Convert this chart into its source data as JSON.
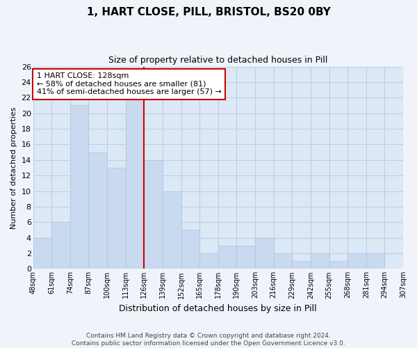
{
  "title": "1, HART CLOSE, PILL, BRISTOL, BS20 0BY",
  "subtitle": "Size of property relative to detached houses in Pill",
  "xlabel": "Distribution of detached houses by size in Pill",
  "ylabel": "Number of detached properties",
  "bar_labels": [
    "48sqm",
    "61sqm",
    "74sqm",
    "87sqm",
    "100sqm",
    "113sqm",
    "126sqm",
    "139sqm",
    "152sqm",
    "165sqm",
    "178sqm",
    "190sqm",
    "203sqm",
    "216sqm",
    "229sqm",
    "242sqm",
    "255sqm",
    "268sqm",
    "281sqm",
    "294sqm",
    "307sqm"
  ],
  "bar_values": [
    4,
    6,
    21,
    15,
    13,
    22,
    14,
    10,
    5,
    2,
    3,
    3,
    4,
    2,
    1,
    2,
    1,
    2,
    2,
    0
  ],
  "bar_color": "#c8d9f0",
  "bar_edgecolor": "#b0c4e0",
  "marker_index": 6,
  "marker_color": "#cc0000",
  "annotation_title": "1 HART CLOSE: 128sqm",
  "annotation_line1": "← 58% of detached houses are smaller (81)",
  "annotation_line2": "41% of semi-detached houses are larger (57) →",
  "annotation_box_edgecolor": "#cc0000",
  "annotation_box_facecolor": "#ffffff",
  "ylim": [
    0,
    26
  ],
  "yticks": [
    0,
    2,
    4,
    6,
    8,
    10,
    12,
    14,
    16,
    18,
    20,
    22,
    24,
    26
  ],
  "footer_line1": "Contains HM Land Registry data © Crown copyright and database right 2024.",
  "footer_line2": "Contains public sector information licensed under the Open Government Licence v3.0.",
  "bg_color": "#f0f4fa",
  "plot_bg_color": "#dce8f5",
  "grid_color": "#b8cfe8"
}
